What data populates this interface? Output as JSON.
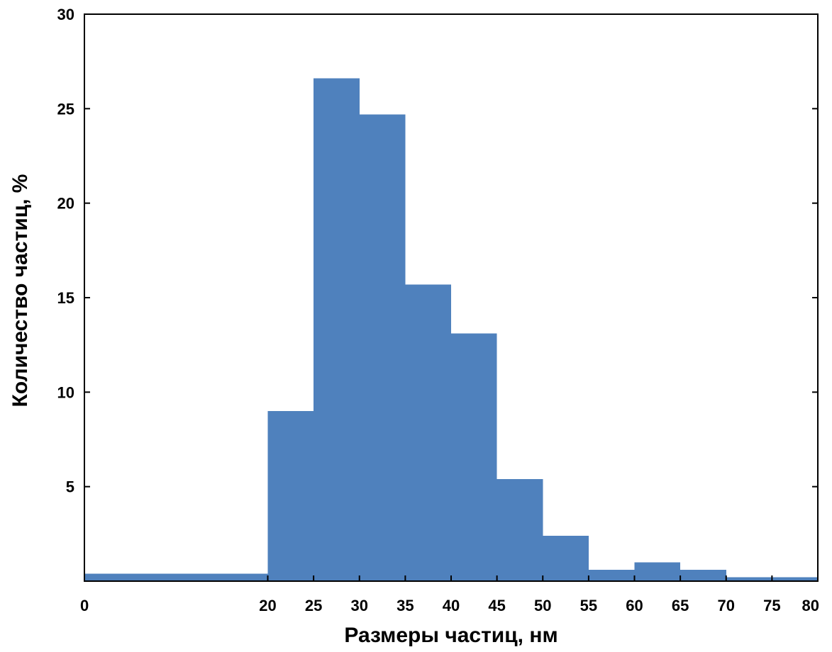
{
  "chart_data": {
    "type": "bar",
    "title": "",
    "xlabel": "Размеры частиц, нм",
    "ylabel": "Количество частиц, %",
    "xlim": [
      0,
      80
    ],
    "ylim": [
      0,
      30
    ],
    "x_ticks": [
      "0",
      "20",
      "25",
      "30",
      "35",
      "40",
      "45",
      "50",
      "55",
      "60",
      "65",
      "70",
      "75",
      "80"
    ],
    "x_tick_values": [
      0,
      20,
      25,
      30,
      35,
      40,
      45,
      50,
      55,
      60,
      65,
      70,
      75,
      80
    ],
    "y_ticks": [
      "5",
      "10",
      "15",
      "20",
      "25",
      "30"
    ],
    "y_tick_values": [
      5,
      10,
      15,
      20,
      25,
      30
    ],
    "bins": [
      {
        "start": 0,
        "end": 20,
        "value": 0.4
      },
      {
        "start": 20,
        "end": 25,
        "value": 9.0
      },
      {
        "start": 25,
        "end": 30,
        "value": 26.6
      },
      {
        "start": 30,
        "end": 35,
        "value": 24.7
      },
      {
        "start": 35,
        "end": 40,
        "value": 15.7
      },
      {
        "start": 40,
        "end": 45,
        "value": 13.1
      },
      {
        "start": 45,
        "end": 50,
        "value": 5.4
      },
      {
        "start": 50,
        "end": 55,
        "value": 2.4
      },
      {
        "start": 55,
        "end": 60,
        "value": 0.6
      },
      {
        "start": 60,
        "end": 65,
        "value": 1.0
      },
      {
        "start": 65,
        "end": 70,
        "value": 0.6
      },
      {
        "start": 70,
        "end": 75,
        "value": 0.2
      },
      {
        "start": 75,
        "end": 80,
        "value": 0.2
      }
    ],
    "bar_color": "#4f81bd",
    "grid": false,
    "legend": "none"
  }
}
